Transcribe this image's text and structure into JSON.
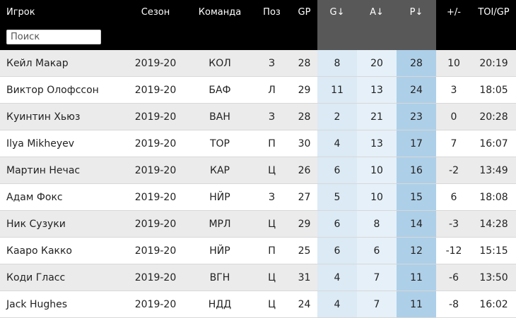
{
  "columns": {
    "player": "Игрок",
    "season": "Сезон",
    "team": "Команда",
    "pos": "Поз",
    "gp": "GP",
    "g": "G↓",
    "a": "A↓",
    "p": "P↓",
    "plusminus": "+/-",
    "toi": "TOI/GP"
  },
  "search": {
    "placeholder": "Поиск",
    "value": ""
  },
  "rows": [
    {
      "player": "Кейл Макар",
      "season": "2019-20",
      "team": "КОЛ",
      "pos": "З",
      "gp": "28",
      "g": "8",
      "a": "20",
      "p": "28",
      "plusminus": "10",
      "toi": "20:19"
    },
    {
      "player": "Виктор Олофссон",
      "season": "2019-20",
      "team": "БАФ",
      "pos": "Л",
      "gp": "29",
      "g": "11",
      "a": "13",
      "p": "24",
      "plusminus": "3",
      "toi": "18:05"
    },
    {
      "player": "Куинтин Хьюз",
      "season": "2019-20",
      "team": "ВАН",
      "pos": "З",
      "gp": "28",
      "g": "2",
      "a": "21",
      "p": "23",
      "plusminus": "0",
      "toi": "20:28"
    },
    {
      "player": "Ilya Mikheyev",
      "season": "2019-20",
      "team": "ТОР",
      "pos": "П",
      "gp": "30",
      "g": "4",
      "a": "13",
      "p": "17",
      "plusminus": "7",
      "toi": "16:07"
    },
    {
      "player": "Мартин Нечас",
      "season": "2019-20",
      "team": "КАР",
      "pos": "Ц",
      "gp": "26",
      "g": "6",
      "a": "10",
      "p": "16",
      "plusminus": "-2",
      "toi": "13:49"
    },
    {
      "player": "Адам Фокс",
      "season": "2019-20",
      "team": "НЙР",
      "pos": "З",
      "gp": "27",
      "g": "5",
      "a": "10",
      "p": "15",
      "plusminus": "6",
      "toi": "18:08"
    },
    {
      "player": "Ник Сузуки",
      "season": "2019-20",
      "team": "МРЛ",
      "pos": "Ц",
      "gp": "29",
      "g": "6",
      "a": "8",
      "p": "14",
      "plusminus": "-3",
      "toi": "14:28"
    },
    {
      "player": "Кааро Какко",
      "season": "2019-20",
      "team": "НЙР",
      "pos": "П",
      "gp": "25",
      "g": "6",
      "a": "6",
      "p": "12",
      "plusminus": "-12",
      "toi": "15:15"
    },
    {
      "player": "Коди Гласс",
      "season": "2019-20",
      "team": "ВГН",
      "pos": "Ц",
      "gp": "31",
      "g": "4",
      "a": "7",
      "p": "11",
      "plusminus": "-6",
      "toi": "13:50"
    },
    {
      "player": "Jack Hughes",
      "season": "2019-20",
      "team": "НДД",
      "pos": "Ц",
      "gp": "24",
      "g": "4",
      "a": "7",
      "p": "11",
      "plusminus": "-8",
      "toi": "16:02"
    }
  ],
  "colors": {
    "header_bg": "#000000",
    "sorted_header_bg": "#585858",
    "row_alt_bg": "#ebebeb",
    "g_col_bg": "#dbeaf5",
    "a_col_bg": "#e5f0f8",
    "p_col_bg": "#aecfe8"
  }
}
